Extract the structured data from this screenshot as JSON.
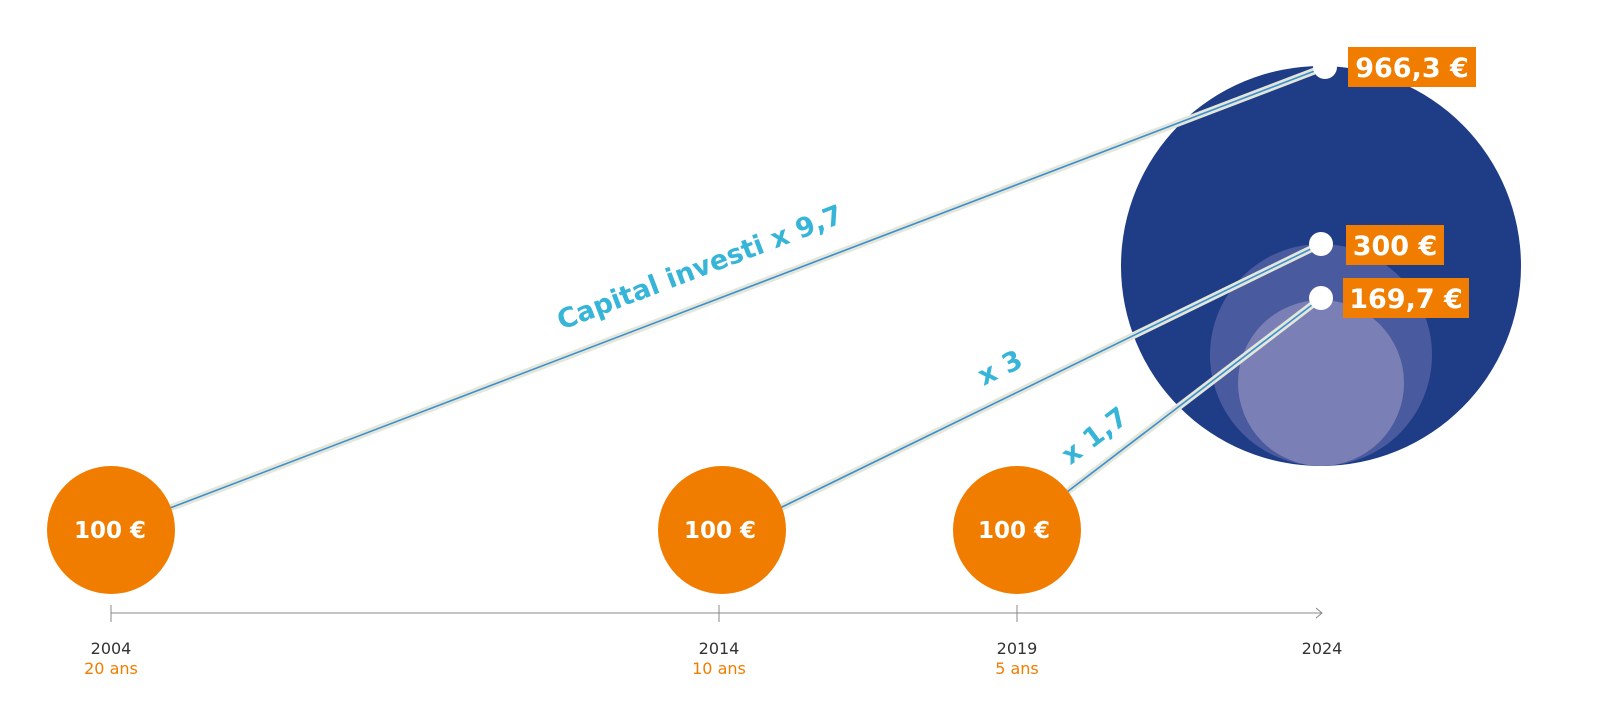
{
  "chart_data": {
    "type": "bubble-timeline",
    "title": "",
    "periods": [
      {
        "start_year": "2004",
        "duration": "20 ans",
        "start_value": "100 €",
        "end_value": "966,3 €",
        "multiplier": "Capital investi x 9,7",
        "value": 966.3
      },
      {
        "start_year": "2014",
        "duration": "10 ans",
        "start_value": "100 €",
        "end_value": "300 €",
        "multiplier": "x 3",
        "value": 300
      },
      {
        "start_year": "2019",
        "duration": "5 ans",
        "start_value": "100 €",
        "end_value": "169,7 €",
        "multiplier": "x 1,7",
        "value": 169.7
      }
    ],
    "end_year": "2024",
    "colors": {
      "start_circle": "#f07d00",
      "label_box": "#f07d00",
      "bubble_20y": "#1f3d87",
      "bubble_10y": "#4a5a9e",
      "bubble_5y": "#7a80b5",
      "multiplier_text": "#36b5d8",
      "connector": "#3b8fd0"
    }
  }
}
